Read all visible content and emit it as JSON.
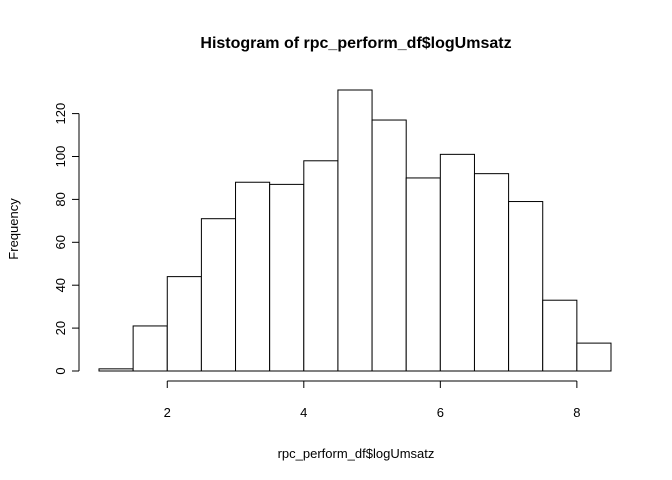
{
  "chart_data": {
    "type": "bar",
    "title": "Histogram of rpc_perform_df$logUmsatz",
    "xlabel": "rpc_perform_df$logUmsatz",
    "ylabel": "Frequency",
    "bin_edges": [
      1.0,
      1.5,
      2.0,
      2.5,
      3.0,
      3.5,
      4.0,
      4.5,
      5.0,
      5.5,
      6.0,
      6.5,
      7.0,
      7.5,
      8.0,
      8.5
    ],
    "values": [
      1,
      21,
      44,
      71,
      88,
      87,
      98,
      131,
      117,
      90,
      101,
      92,
      79,
      33,
      13
    ],
    "xlim": [
      1.0,
      8.5
    ],
    "ylim": [
      0,
      131
    ],
    "x_ticks": [
      2,
      4,
      6,
      8
    ],
    "x_tick_labels": [
      "2",
      "4",
      "6",
      "8"
    ],
    "y_ticks": [
      0,
      20,
      40,
      60,
      80,
      100,
      120
    ],
    "y_tick_labels": [
      "0",
      "20",
      "40",
      "60",
      "80",
      "100",
      "120"
    ],
    "grid": false,
    "legend": "none",
    "bar_fill": "#ffffff",
    "bar_stroke": "#000000"
  }
}
